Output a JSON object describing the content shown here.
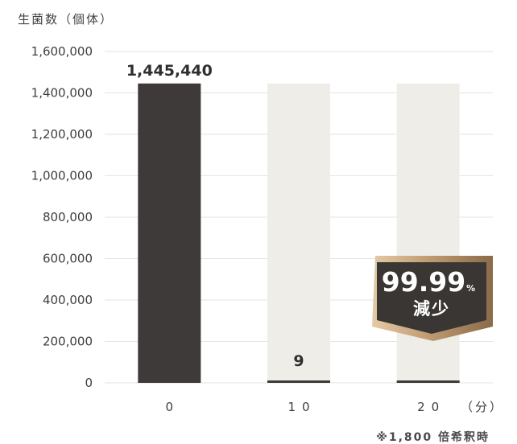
{
  "chart_data": {
    "type": "bar",
    "ylabel": "生菌数（個体）",
    "categories": [
      "0",
      "10",
      "20"
    ],
    "x_unit": "（分）",
    "values": [
      1445440,
      9,
      0
    ],
    "data_labels": [
      "1,445,440",
      "9",
      ""
    ],
    "background_bar_value": 1445440,
    "ylim": [
      0,
      1600000
    ],
    "yticks": [
      0,
      200000,
      400000,
      600000,
      800000,
      1000000,
      1200000,
      1400000,
      1600000
    ],
    "ytick_labels": [
      "0",
      "200,000",
      "400,000",
      "600,000",
      "800,000",
      "1,000,000",
      "1,200,000",
      "1,400,000",
      "1,600,000"
    ],
    "grid": true,
    "colors": {
      "bar": "#3d3a39",
      "background_bar": "#efede7",
      "grid": "#e3e3e3",
      "badge_dark": "#3a3634",
      "badge_gold": "#b8936a"
    }
  },
  "badge": {
    "value": "99.99",
    "percent": "%",
    "label": "減少"
  },
  "note": "※1,800 倍希釈時"
}
